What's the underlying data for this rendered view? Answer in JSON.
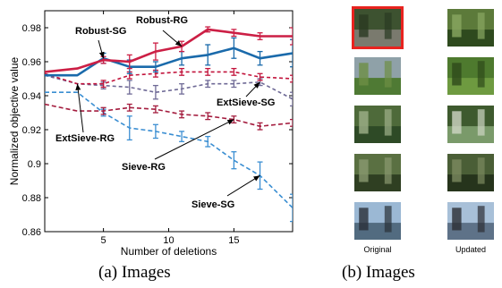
{
  "captions": {
    "left": "(a) Images",
    "right": "(b) Images"
  },
  "chart_data": {
    "type": "line",
    "xlabel": "Number of deletions",
    "ylabel": "Normalized objective value",
    "xlim": [
      0.5,
      19.5
    ],
    "ylim": [
      0.86,
      0.99
    ],
    "xticks": [
      5,
      10,
      15
    ],
    "yticks": [
      0.86,
      0.88,
      0.9,
      0.92,
      0.94,
      0.96,
      0.98
    ],
    "ytick_labels": [
      "0.86",
      "0.88",
      "0.9",
      "0.92",
      "0.94",
      "0.96",
      "0.98"
    ],
    "grid": false,
    "x": [
      0.5,
      3,
      5,
      7,
      9,
      11,
      13,
      15,
      17,
      19.5
    ],
    "series": [
      {
        "name": "Robust-RG",
        "color": "#cc1f45",
        "dash": "solid",
        "width": 2.6,
        "values": [
          0.954,
          0.956,
          0.961,
          0.96,
          0.966,
          0.969,
          0.979,
          0.977,
          0.975,
          0.975
        ],
        "errors": [
          0,
          0,
          0.002,
          0.004,
          0.005,
          0.003,
          0.0015,
          0.002,
          0.002,
          0.005
        ]
      },
      {
        "name": "Robust-SG",
        "color": "#1a6aab",
        "dash": "solid",
        "width": 2.6,
        "values": [
          0.952,
          0.952,
          0.962,
          0.957,
          0.957,
          0.962,
          0.964,
          0.968,
          0.962,
          0.965
        ],
        "errors": [
          0,
          0,
          0.003,
          0.004,
          0.003,
          0.004,
          0.006,
          0.006,
          0.004,
          0.008
        ]
      },
      {
        "name": "ExtSieve-RG",
        "color": "#c2143c",
        "dash": "4,3",
        "width": 1.6,
        "values": [
          0.953,
          0.947,
          0.947,
          0.952,
          0.953,
          0.954,
          0.954,
          0.954,
          0.951,
          0.95
        ],
        "errors": [
          0,
          0,
          0.002,
          0.002,
          0.002,
          0.002,
          0.002,
          0.002,
          0.002,
          0.002
        ]
      },
      {
        "name": "ExtSieve-SG",
        "color": "#6f6a96",
        "dash": "4,3",
        "width": 1.6,
        "values": [
          0.952,
          0.947,
          0.946,
          0.945,
          0.942,
          0.944,
          0.947,
          0.947,
          0.948,
          0.938
        ],
        "errors": [
          0,
          0,
          0.002,
          0.004,
          0.004,
          0.003,
          0.002,
          0.002,
          0.002,
          0.004
        ]
      },
      {
        "name": "Sieve-RG",
        "color": "#a41c3e",
        "dash": "5,3",
        "width": 1.6,
        "values": [
          0.935,
          0.931,
          0.931,
          0.933,
          0.932,
          0.929,
          0.928,
          0.926,
          0.922,
          0.924
        ],
        "errors": [
          0,
          0,
          0.002,
          0.002,
          0.002,
          0.002,
          0.002,
          0.002,
          0.002,
          0.002
        ]
      },
      {
        "name": "Sieve-SG",
        "color": "#3a8ed2",
        "dash": "5,3",
        "width": 1.6,
        "values": [
          0.942,
          0.942,
          0.93,
          0.921,
          0.919,
          0.916,
          0.913,
          0.902,
          0.893,
          0.874
        ],
        "errors": [
          0,
          0,
          0.002,
          0.007,
          0.004,
          0.003,
          0.003,
          0.005,
          0.008,
          0.008
        ]
      }
    ],
    "annotations": [
      {
        "text": "Robust-RG",
        "target": [
          11,
          0.969
        ]
      },
      {
        "text": "Robust-SG",
        "target": [
          5,
          0.962
        ]
      },
      {
        "text": "ExtSieve-RG",
        "target": [
          3,
          0.947
        ]
      },
      {
        "text": "ExtSieve-SG",
        "target": [
          17,
          0.948
        ]
      },
      {
        "text": "Sieve-RG",
        "target": [
          15,
          0.926
        ]
      },
      {
        "text": "Sieve-SG",
        "target": [
          17,
          0.893
        ]
      }
    ]
  },
  "image_grid": {
    "column_labels": [
      "Original",
      "Updated"
    ],
    "selected_index": 0,
    "highlight_color": "#e8231f",
    "thumbnails": [
      {
        "col": 0,
        "row": 0,
        "scene": "group-photo-forest",
        "colors": [
          "#3d5230",
          "#7a7a6e",
          "#2a3a22"
        ]
      },
      {
        "col": 0,
        "row": 1,
        "scene": "meadow-bench",
        "colors": [
          "#8fa1a8",
          "#4f7a34",
          "#6d8f45"
        ]
      },
      {
        "col": 0,
        "row": 2,
        "scene": "forest-stream",
        "colors": [
          "#4e6a3a",
          "#2e4a26",
          "#9fb08a"
        ]
      },
      {
        "col": 0,
        "row": 3,
        "scene": "person-in-forest",
        "colors": [
          "#5a7042",
          "#2f3f22",
          "#8a9a70"
        ]
      },
      {
        "col": 0,
        "row": 4,
        "scene": "person-sky-mountains",
        "colors": [
          "#9bb8d4",
          "#526b80",
          "#2a3038"
        ]
      },
      {
        "col": 1,
        "row": 0,
        "scene": "forest-bench",
        "colors": [
          "#5c7a3a",
          "#2e4a1e",
          "#8aa862"
        ]
      },
      {
        "col": 1,
        "row": 1,
        "scene": "dense-greenery",
        "colors": [
          "#4e7a2e",
          "#6e9a40",
          "#2e4a1a"
        ]
      },
      {
        "col": 1,
        "row": 2,
        "scene": "forest-stream",
        "colors": [
          "#3e5a2e",
          "#7a9a6a",
          "#cfd6c4"
        ]
      },
      {
        "col": 1,
        "row": 3,
        "scene": "person-in-forest",
        "colors": [
          "#4a5e36",
          "#26341c",
          "#7c8a60"
        ]
      },
      {
        "col": 1,
        "row": 4,
        "scene": "group-sky-mountains",
        "colors": [
          "#a8c0d8",
          "#5e7288",
          "#2c2e34"
        ]
      }
    ]
  }
}
